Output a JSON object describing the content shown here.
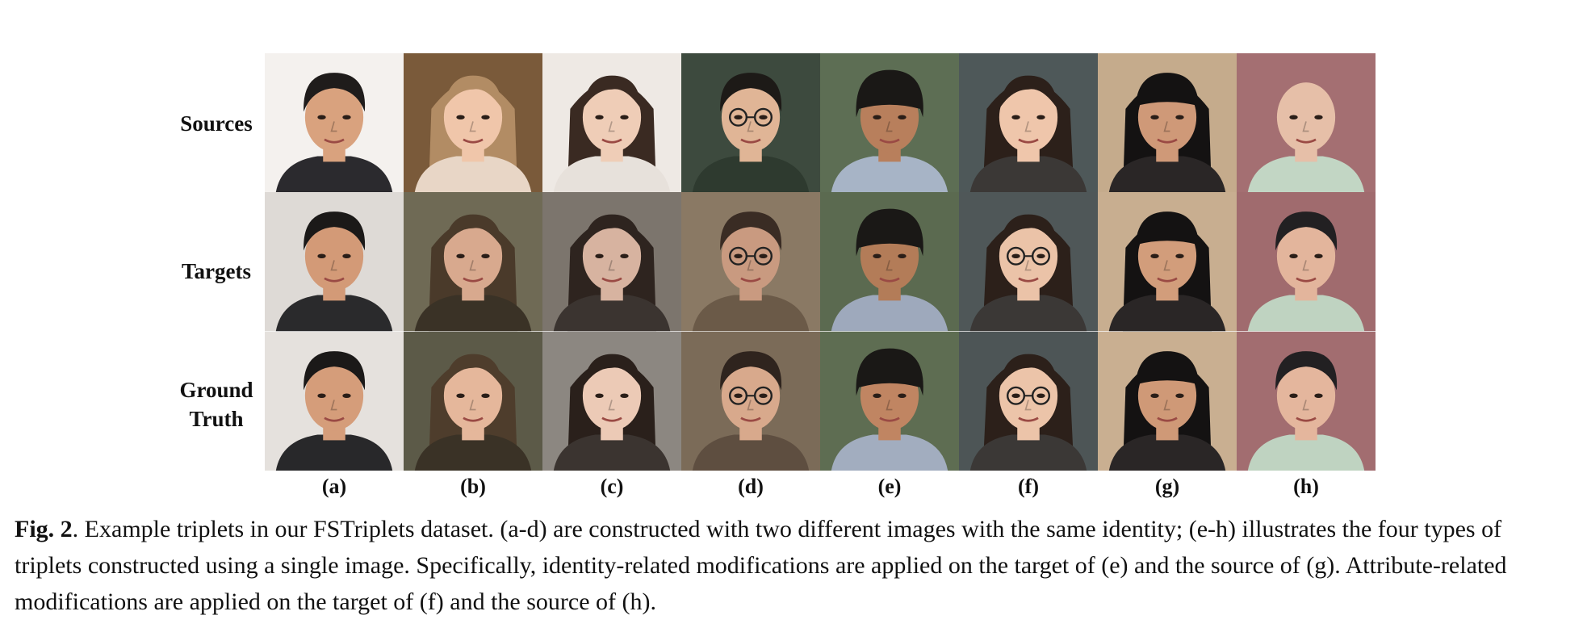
{
  "figure": {
    "row_labels": [
      "Sources",
      "Targets",
      "Ground Truth"
    ],
    "row_label_lines": [
      [
        "Sources"
      ],
      [
        "Targets"
      ],
      [
        "Ground",
        "Truth"
      ]
    ],
    "column_labels": [
      "(a)",
      "(b)",
      "(c)",
      "(d)",
      "(e)",
      "(f)",
      "(g)",
      "(h)"
    ],
    "cells": [
      [
        {
          "bg": "#f4f1ee",
          "skin": "#d9a27e",
          "hair": "#1f1c1b",
          "cloth": "#2b2a2e",
          "style": "short"
        },
        {
          "bg": "#7a5a3a",
          "skin": "#f0c6aa",
          "hair": "#b28c64",
          "cloth": "#e8d6c6",
          "style": "long"
        },
        {
          "bg": "#eee9e4",
          "skin": "#efcdb7",
          "hair": "#3a2a22",
          "cloth": "#e7e1db",
          "style": "long"
        },
        {
          "bg": "#3d4a3e",
          "skin": "#e0b596",
          "hair": "#1d1a17",
          "cloth": "#2e3a2f",
          "style": "short",
          "glasses": true
        },
        {
          "bg": "#5d6e54",
          "skin": "#b87f5c",
          "hair": "#1a1816",
          "cloth": "#a7b4c6",
          "style": "bowl"
        },
        {
          "bg": "#4e5859",
          "skin": "#efc6ab",
          "hair": "#2c201a",
          "cloth": "#3b3836",
          "style": "bob"
        },
        {
          "bg": "#c5ab8c",
          "skin": "#cf9978",
          "hair": "#141212",
          "cloth": "#2a2626",
          "style": "bangs"
        },
        {
          "bg": "#a46f72",
          "skin": "#e6bfa8",
          "hair": "#e6bfa8",
          "cloth": "#c2d6c4",
          "style": "bald"
        }
      ],
      [
        {
          "bg": "#dedad6",
          "skin": "#d39a77",
          "hair": "#1b1918",
          "cloth": "#2a2a2c",
          "style": "short"
        },
        {
          "bg": "#6f6a55",
          "skin": "#d8a98e",
          "hair": "#4a3a2a",
          "cloth": "#3a3226",
          "style": "long"
        },
        {
          "bg": "#7c756d",
          "skin": "#d7b3a0",
          "hair": "#2e241f",
          "cloth": "#3b3430",
          "style": "long"
        },
        {
          "bg": "#8a7964",
          "skin": "#c99a80",
          "hair": "#3a2c24",
          "cloth": "#6b5a48",
          "style": "short",
          "glasses": true
        },
        {
          "bg": "#5b6a50",
          "skin": "#b37c58",
          "hair": "#1a1816",
          "cloth": "#9ea9bc",
          "style": "bowl"
        },
        {
          "bg": "#4f5758",
          "skin": "#ebc3a8",
          "hair": "#2c201a",
          "cloth": "#3b3836",
          "style": "bob",
          "glasses": true
        },
        {
          "bg": "#c8ae90",
          "skin": "#d29d7b",
          "hair": "#141212",
          "cloth": "#2a2626",
          "style": "bangs"
        },
        {
          "bg": "#a06b6e",
          "skin": "#e3b59c",
          "hair": "#222022",
          "cloth": "#bfd3c1",
          "style": "short"
        }
      ],
      [
        {
          "bg": "#e5e1dd",
          "skin": "#d59d7a",
          "hair": "#1b1918",
          "cloth": "#28282a",
          "style": "short"
        },
        {
          "bg": "#5c5a48",
          "skin": "#e5b79b",
          "hair": "#4e3d2c",
          "cloth": "#3a3226",
          "style": "long"
        },
        {
          "bg": "#8c8781",
          "skin": "#eccab6",
          "hair": "#2a201b",
          "cloth": "#3b3430",
          "style": "long"
        },
        {
          "bg": "#7b6b58",
          "skin": "#d8a98c",
          "hair": "#2f241e",
          "cloth": "#5e4e40",
          "style": "short",
          "glasses": true
        },
        {
          "bg": "#5e6d52",
          "skin": "#c08562",
          "hair": "#1a1816",
          "cloth": "#a2adbf",
          "style": "bowl"
        },
        {
          "bg": "#4d5556",
          "skin": "#ecc4a9",
          "hair": "#2c201a",
          "cloth": "#3b3836",
          "style": "bob",
          "glasses": true
        },
        {
          "bg": "#c9af91",
          "skin": "#cf9977",
          "hair": "#141212",
          "cloth": "#2a2626",
          "style": "bangs"
        },
        {
          "bg": "#a26d70",
          "skin": "#e4b69d",
          "hair": "#222022",
          "cloth": "#bfd3c1",
          "style": "short"
        }
      ]
    ]
  },
  "caption": {
    "label": "Fig. 2",
    "text": ". Example triplets in our FSTriplets dataset. (a-d) are constructed with two different images with the same identity; (e-h) illustrates the four types of triplets constructed using a single image. Specifically, identity-related modifications are applied on the target of (e) and the source of (g). Attribute-related modifications are applied on the target of (f) and the source of (h)."
  }
}
